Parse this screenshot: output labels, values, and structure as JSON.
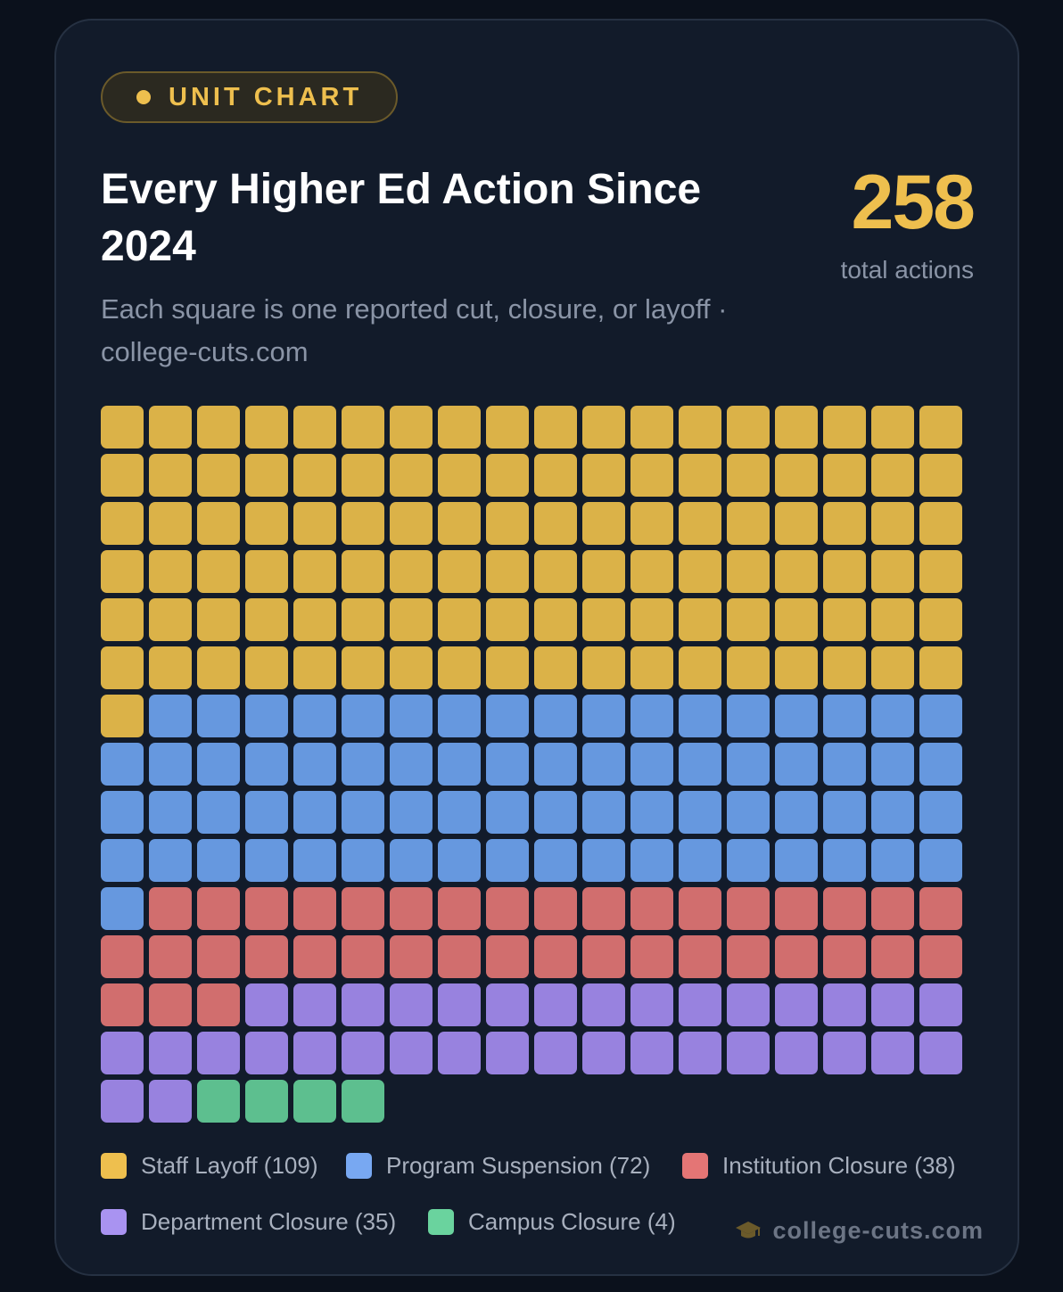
{
  "badge": {
    "label": "UNIT CHART"
  },
  "title": "Every Higher Ed Action Since 2024",
  "subtitle": "Each square is one reported cut, closure, or layoff · college-cuts.com",
  "stat": {
    "value": "258",
    "label": "total actions"
  },
  "brand": {
    "text": "college-cuts.com",
    "icon": "graduation-cap-icon"
  },
  "chart_data": {
    "type": "waffle",
    "columns": 18,
    "total": 258,
    "series": [
      {
        "name": "Staff Layoff",
        "value": 109,
        "color": "#dbb248",
        "swatch": "#eebf4e",
        "legend": "Staff Layoff (109)"
      },
      {
        "name": "Program Suspension",
        "value": 72,
        "color": "#6698df",
        "swatch": "#78a8f2",
        "legend": "Program Suspension (72)"
      },
      {
        "name": "Institution Closure",
        "value": 38,
        "color": "#d16e6e",
        "swatch": "#e47575",
        "legend": "Institution Closure (38)"
      },
      {
        "name": "Department Closure",
        "value": 35,
        "color": "#9882df",
        "swatch": "#a993f1",
        "legend": "Department Closure (35)"
      },
      {
        "name": "Campus Closure",
        "value": 4,
        "color": "#5dbf8f",
        "swatch": "#6ad39e",
        "legend": "Campus Closure (4)"
      }
    ]
  }
}
